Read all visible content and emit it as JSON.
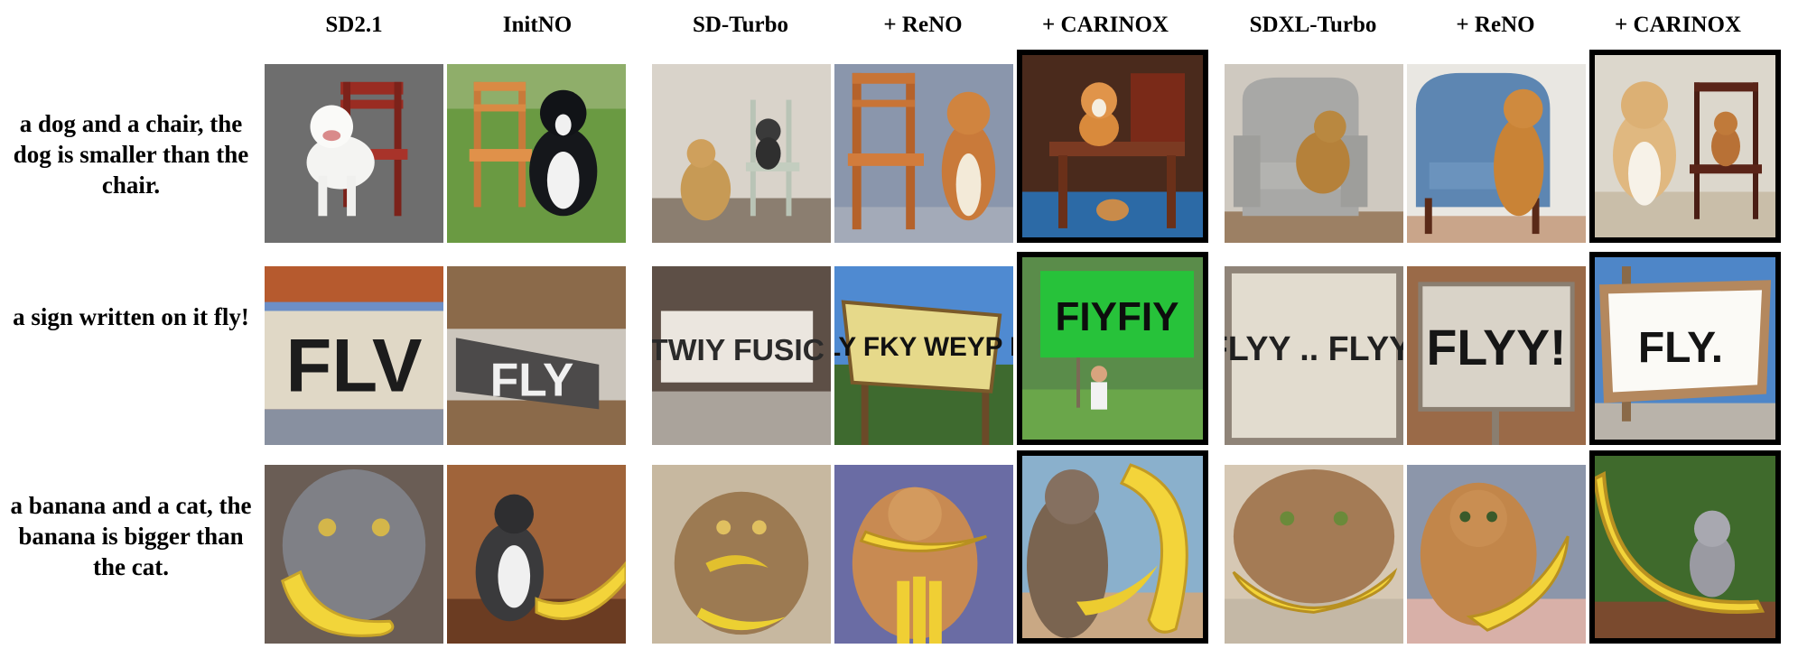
{
  "columns": [
    "SD2.1",
    "InitNO",
    "SD-Turbo",
    "+ ReNO",
    "+ CARINOX",
    "SDXL-Turbo",
    "+ ReNO",
    "+ CARINOX"
  ],
  "prompts": [
    "a dog and a chair, the dog is smaller than the chair.",
    "a sign written on it fly!",
    "a banana and a cat, the banana is bigger than the cat."
  ],
  "sign_texts": [
    "FLV",
    "FLY",
    "TWIY FUSIC",
    "FLY FKY WEYP IM",
    "FIYFIY",
    "FLYY .. FLYY",
    "FLYY!",
    "FLY."
  ]
}
